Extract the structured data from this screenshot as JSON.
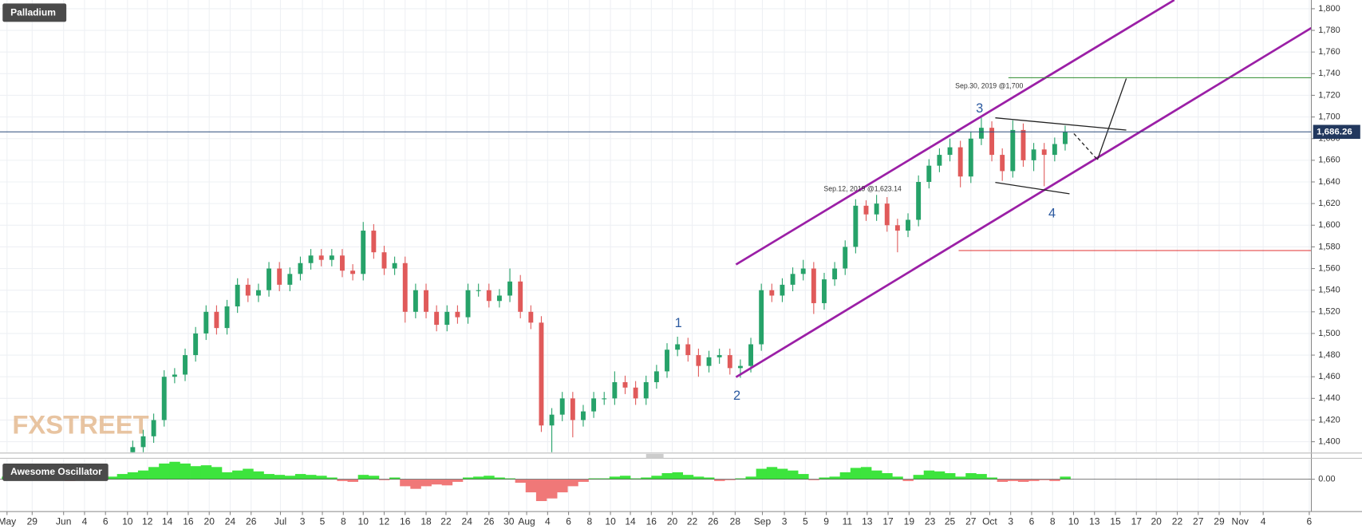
{
  "chart_data": [
    {
      "type": "candlestick",
      "title": "Palladium",
      "watermark": "FXSTREET",
      "annotations": [
        "Sep.30, 2019 @1,700",
        "Sep.12, 2019 @1,623.14",
        "1",
        "2",
        "3",
        "4"
      ],
      "last_price": {
        "value": 1686.26,
        "label": "1,686.26"
      },
      "up_color": "#26a269",
      "down_color": "#e05a5a",
      "grid": true,
      "x": [
        12,
        13,
        14,
        15,
        16,
        17,
        18,
        19,
        20,
        21,
        22,
        23,
        24,
        25,
        26,
        27,
        28,
        29,
        30,
        31,
        32,
        33,
        34,
        35,
        36,
        37,
        38,
        39,
        40,
        41,
        42,
        43,
        44,
        45,
        46,
        47,
        48,
        49,
        50,
        51,
        52,
        53,
        54,
        55,
        56,
        57,
        58,
        59,
        60,
        61,
        62,
        63,
        64,
        65,
        66,
        67,
        68,
        69,
        70,
        71,
        72,
        73,
        74,
        75,
        76,
        77,
        78,
        79,
        80,
        81,
        82,
        83,
        84,
        85,
        86,
        87,
        88,
        89,
        90,
        91,
        92,
        93,
        94,
        95,
        96,
        97,
        98,
        99,
        100,
        101
      ],
      "open": [
        1390,
        1395,
        1405,
        1420,
        1460,
        1462,
        1480,
        1500,
        1520,
        1505,
        1525,
        1545,
        1535,
        1540,
        1560,
        1545,
        1555,
        1565,
        1572,
        1568,
        1572,
        1558,
        1555,
        1595,
        1575,
        1560,
        1565,
        1520,
        1540,
        1520,
        1508,
        1520,
        1515,
        1540,
        1540,
        1530,
        1535,
        1548,
        1520,
        1510,
        1415,
        1425,
        1440,
        1420,
        1428,
        1440,
        1440,
        1455,
        1450,
        1440,
        1455,
        1465,
        1485,
        1490,
        1480,
        1470,
        1478,
        1480,
        1468,
        1470,
        1490,
        1540,
        1535,
        1545,
        1555,
        1560,
        1528,
        1550,
        1560,
        1580,
        1618,
        1610,
        1620,
        1600,
        1595,
        1605,
        1640,
        1655,
        1665,
        1672,
        1645,
        1680,
        1690,
        1665,
        1650,
        1688,
        1660,
        1670,
        1665,
        1675
      ],
      "high": [
        1401,
        1411,
        1426,
        1466,
        1468,
        1486,
        1506,
        1526,
        1526,
        1531,
        1551,
        1551,
        1546,
        1566,
        1566,
        1561,
        1571,
        1578,
        1578,
        1578,
        1578,
        1564,
        1603,
        1601,
        1581,
        1571,
        1571,
        1546,
        1546,
        1526,
        1526,
        1526,
        1546,
        1546,
        1546,
        1541,
        1560,
        1554,
        1526,
        1516,
        1431,
        1446,
        1446,
        1434,
        1446,
        1446,
        1465,
        1461,
        1456,
        1461,
        1471,
        1491,
        1497,
        1496,
        1486,
        1484,
        1486,
        1486,
        1476,
        1496,
        1546,
        1546,
        1551,
        1561,
        1568,
        1566,
        1556,
        1566,
        1586,
        1624,
        1623,
        1628,
        1626,
        1606,
        1611,
        1646,
        1661,
        1671,
        1680,
        1678,
        1686,
        1700,
        1696,
        1671,
        1697,
        1694,
        1676,
        1676,
        1681,
        1692
      ],
      "low": [
        1384,
        1389,
        1399,
        1414,
        1454,
        1456,
        1474,
        1494,
        1499,
        1499,
        1519,
        1529,
        1529,
        1534,
        1539,
        1539,
        1549,
        1559,
        1562,
        1562,
        1552,
        1549,
        1549,
        1569,
        1554,
        1554,
        1510,
        1514,
        1514,
        1502,
        1502,
        1509,
        1509,
        1534,
        1524,
        1524,
        1529,
        1514,
        1504,
        1409,
        1388,
        1419,
        1404,
        1414,
        1422,
        1434,
        1434,
        1444,
        1434,
        1434,
        1449,
        1459,
        1479,
        1474,
        1460,
        1464,
        1472,
        1462,
        1459,
        1464,
        1484,
        1529,
        1529,
        1539,
        1549,
        1518,
        1522,
        1544,
        1554,
        1574,
        1604,
        1604,
        1594,
        1575,
        1589,
        1599,
        1634,
        1649,
        1659,
        1635,
        1639,
        1674,
        1659,
        1641,
        1644,
        1654,
        1650,
        1636,
        1659,
        1669
      ],
      "close": [
        1395,
        1405,
        1420,
        1460,
        1462,
        1480,
        1500,
        1520,
        1505,
        1525,
        1545,
        1535,
        1540,
        1560,
        1545,
        1555,
        1565,
        1572,
        1568,
        1572,
        1558,
        1555,
        1595,
        1575,
        1560,
        1565,
        1520,
        1540,
        1520,
        1508,
        1520,
        1515,
        1540,
        1540,
        1530,
        1535,
        1548,
        1520,
        1510,
        1415,
        1425,
        1440,
        1420,
        1428,
        1440,
        1440,
        1455,
        1450,
        1440,
        1455,
        1465,
        1485,
        1490,
        1480,
        1470,
        1478,
        1480,
        1468,
        1470,
        1490,
        1540,
        1535,
        1545,
        1555,
        1560,
        1528,
        1550,
        1560,
        1580,
        1618,
        1610,
        1620,
        1600,
        1595,
        1605,
        1640,
        1655,
        1665,
        1672,
        1645,
        1680,
        1690,
        1665,
        1650,
        1688,
        1660,
        1670,
        1665,
        1675,
        1686
      ],
      "ylim": [
        1400,
        1800
      ],
      "yticks": [
        {
          "value": 1400,
          "label": "1,400"
        },
        {
          "value": 1420,
          "label": "1,420"
        },
        {
          "value": 1440,
          "label": "1,440"
        },
        {
          "value": 1460,
          "label": "1,460"
        },
        {
          "value": 1480,
          "label": "1,480"
        },
        {
          "value": 1500,
          "label": "1,500"
        },
        {
          "value": 1520,
          "label": "1,520"
        },
        {
          "value": 1540,
          "label": "1,540"
        },
        {
          "value": 1560,
          "label": "1,560"
        },
        {
          "value": 1580,
          "label": "1,580"
        },
        {
          "value": 1600,
          "label": "1,600"
        },
        {
          "value": 1620,
          "label": "1,620"
        },
        {
          "value": 1640,
          "label": "1,640"
        },
        {
          "value": 1660,
          "label": "1,660"
        },
        {
          "value": 1680,
          "label": "1,680"
        },
        {
          "value": 1700,
          "label": "1,700"
        },
        {
          "value": 1720,
          "label": "1,720"
        },
        {
          "value": 1740,
          "label": "1,740"
        },
        {
          "value": 1760,
          "label": "1,760"
        },
        {
          "value": 1780,
          "label": "1,780"
        },
        {
          "value": 1800,
          "label": "1,800"
        }
      ],
      "xlim": [
        -0.67,
        124.5
      ],
      "xticks": [
        {
          "value": 0,
          "label": "May"
        },
        {
          "value": 2.4,
          "label": "29"
        },
        {
          "value": 5.4,
          "label": "Jun"
        },
        {
          "value": 7.4,
          "label": "4"
        },
        {
          "value": 9.4,
          "label": "6"
        },
        {
          "value": 11.5,
          "label": "10"
        },
        {
          "value": 13.4,
          "label": "12"
        },
        {
          "value": 15.3,
          "label": "14"
        },
        {
          "value": 17.3,
          "label": "16"
        },
        {
          "value": 19.3,
          "label": "20"
        },
        {
          "value": 21.3,
          "label": "24"
        },
        {
          "value": 23.3,
          "label": "26"
        },
        {
          "value": 26.1,
          "label": "Jul"
        },
        {
          "value": 28.2,
          "label": "3"
        },
        {
          "value": 30.1,
          "label": "5"
        },
        {
          "value": 32.1,
          "label": "8"
        },
        {
          "value": 34,
          "label": "10"
        },
        {
          "value": 36,
          "label": "12"
        },
        {
          "value": 38,
          "label": "16"
        },
        {
          "value": 40,
          "label": "18"
        },
        {
          "value": 41.9,
          "label": "22"
        },
        {
          "value": 43.9,
          "label": "24"
        },
        {
          "value": 46,
          "label": "26"
        },
        {
          "value": 47.9,
          "label": "30"
        },
        {
          "value": 49.6,
          "label": "Aug"
        },
        {
          "value": 51.6,
          "label": "4"
        },
        {
          "value": 53.6,
          "label": "6"
        },
        {
          "value": 55.6,
          "label": "8"
        },
        {
          "value": 57.6,
          "label": "10"
        },
        {
          "value": 59.5,
          "label": "14"
        },
        {
          "value": 61.5,
          "label": "16"
        },
        {
          "value": 63.5,
          "label": "20"
        },
        {
          "value": 65.4,
          "label": "22"
        },
        {
          "value": 67.4,
          "label": "26"
        },
        {
          "value": 69.5,
          "label": "28"
        },
        {
          "value": 72.1,
          "label": "Sep"
        },
        {
          "value": 74.2,
          "label": "3"
        },
        {
          "value": 76.2,
          "label": "5"
        },
        {
          "value": 78.2,
          "label": "9"
        },
        {
          "value": 80.2,
          "label": "11"
        },
        {
          "value": 82.1,
          "label": "13"
        },
        {
          "value": 84.1,
          "label": "17"
        },
        {
          "value": 86.1,
          "label": "19"
        },
        {
          "value": 88.1,
          "label": "23"
        },
        {
          "value": 90,
          "label": "25"
        },
        {
          "value": 92,
          "label": "27"
        },
        {
          "value": 93.8,
          "label": "Oct"
        },
        {
          "value": 95.8,
          "label": "3"
        },
        {
          "value": 97.8,
          "label": "6"
        },
        {
          "value": 99.8,
          "label": "8"
        },
        {
          "value": 101.8,
          "label": "10"
        },
        {
          "value": 103.8,
          "label": "13"
        },
        {
          "value": 105.8,
          "label": "15"
        },
        {
          "value": 107.8,
          "label": "17"
        },
        {
          "value": 109.7,
          "label": "20"
        },
        {
          "value": 111.7,
          "label": "22"
        },
        {
          "value": 113.7,
          "label": "27"
        },
        {
          "value": 115.7,
          "label": "29"
        },
        {
          "value": 117.7,
          "label": "Nov"
        },
        {
          "value": 119.9,
          "label": "4"
        },
        {
          "value": 124.3,
          "label": "6"
        }
      ]
    },
    {
      "type": "bar",
      "title": "Awesome Oscillator",
      "pos_color": "#3de43d",
      "neg_color": "#f07878",
      "x": [
        0,
        1,
        2,
        3,
        4,
        5,
        6,
        7,
        8,
        9,
        10,
        11,
        12,
        13,
        14,
        15,
        16,
        17,
        18,
        19,
        20,
        21,
        22,
        23,
        24,
        25,
        26,
        27,
        28,
        29,
        30,
        31,
        32,
        33,
        34,
        35,
        36,
        37,
        38,
        39,
        40,
        41,
        42,
        43,
        44,
        45,
        46,
        47,
        48,
        49,
        50,
        51,
        52,
        53,
        54,
        55,
        56,
        57,
        58,
        59,
        60,
        61,
        62,
        63,
        64,
        65,
        66,
        67,
        68,
        69,
        70,
        71,
        72,
        73,
        74,
        75,
        76,
        77,
        78,
        79,
        80,
        81,
        82,
        83,
        84,
        85,
        86,
        87,
        88,
        89,
        90,
        91,
        92,
        93,
        94,
        95,
        96,
        97,
        98,
        99,
        100,
        101
      ],
      "values": [
        3,
        2,
        -1,
        0,
        1,
        -1,
        -2,
        1,
        2,
        -1,
        3,
        6,
        8,
        10,
        14,
        18,
        20,
        18,
        15,
        16,
        14,
        8,
        10,
        12,
        9,
        6,
        5,
        4,
        6,
        5,
        4,
        2,
        -2,
        -3,
        5,
        4,
        -1,
        2,
        -8,
        -11,
        -8,
        -6,
        -7,
        -3,
        2,
        3,
        4,
        2,
        1,
        -4,
        -15,
        -25,
        -22,
        -15,
        -8,
        -3,
        1,
        1,
        3,
        4,
        1,
        2,
        4,
        7,
        8,
        5,
        3,
        2,
        -2,
        -1,
        1,
        3,
        12,
        14,
        12,
        10,
        6,
        -1,
        2,
        3,
        8,
        13,
        14,
        10,
        7,
        3,
        -2,
        5,
        10,
        9,
        7,
        3,
        7,
        6,
        2,
        -3,
        -2,
        -3,
        -2,
        -1,
        -2,
        3
      ],
      "ylim": [
        -35,
        22
      ],
      "yticks": [
        {
          "value": 0,
          "label": "0.00"
        }
      ]
    }
  ]
}
